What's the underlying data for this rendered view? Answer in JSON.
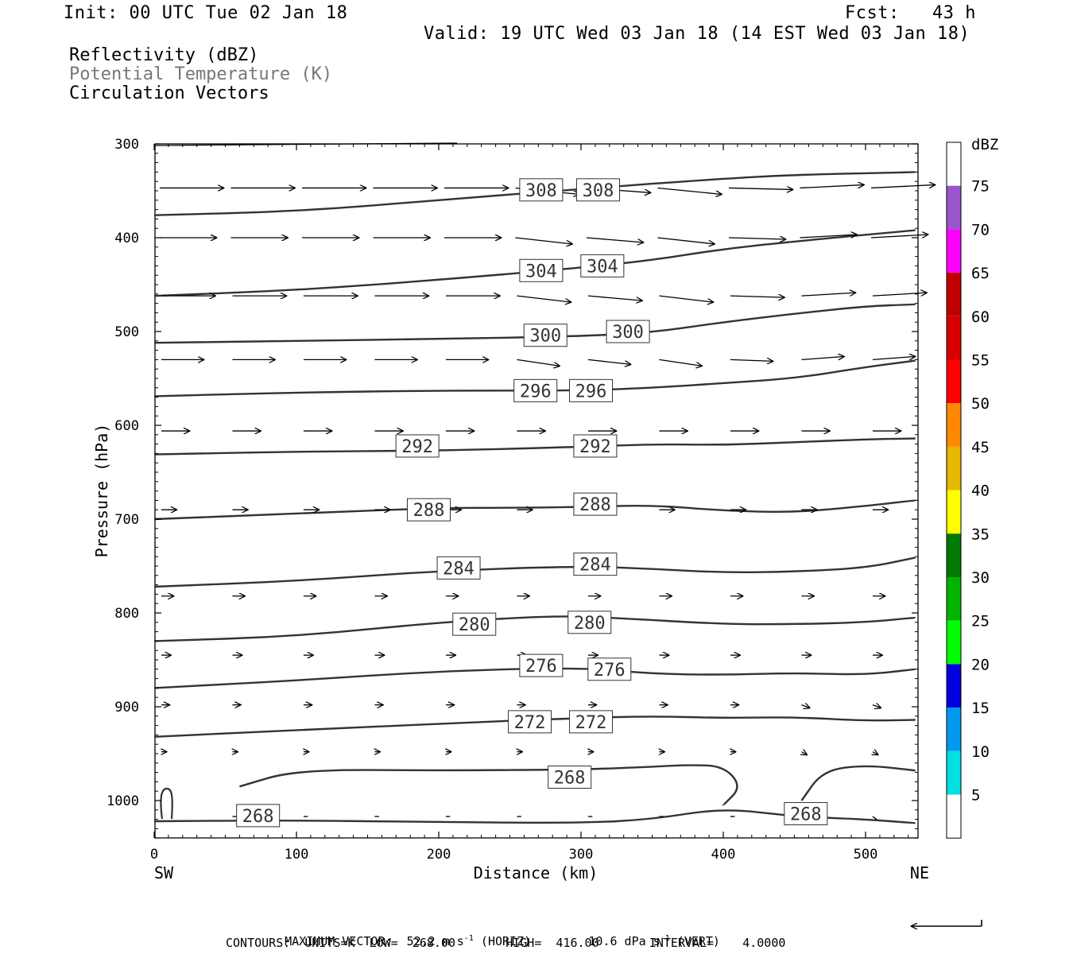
{
  "header": {
    "init": "Init: 00 UTC Tue 02 Jan 18",
    "fcst": "Fcst:   43 h",
    "valid": "Valid: 19 UTC Wed 03 Jan 18 (14 EST Wed 03 Jan 18)"
  },
  "fields": {
    "reflectivity": "Reflectivity (dBZ)",
    "theta": "Potential Temperature (K)",
    "vectors": "Circulation Vectors"
  },
  "footer": {
    "max_vector": "MAXIMUM VECTOR:  52.2 m s",
    "exp1": "-1",
    "horiz": " (HORIZ)",
    "vert_val": "10.6 dPa s",
    "exp2": "-1",
    "vert": " (VERT)",
    "contours": "CONTOURS:  UNITS=K  LOW=  268.00       HIGH=  416.00       INTERVAL=    4.0000"
  },
  "colors": {
    "contour": "#333333",
    "arrow": "#000000"
  },
  "chart_data": {
    "type": "line",
    "description_type": "cross-section",
    "xlabel": "Distance (km)",
    "ylabel": "Pressure (hPa)",
    "xlim": [
      0,
      535
    ],
    "ylim": [
      1040,
      300
    ],
    "x_ticks": [
      0,
      100,
      200,
      300,
      400,
      500
    ],
    "y_ticks": [
      300,
      400,
      500,
      600,
      700,
      800,
      900,
      1000
    ],
    "x_end_labels": {
      "left": "SW",
      "right": "NE"
    },
    "contours": [
      {
        "value": 308,
        "x": [
          0,
          100,
          200,
          300,
          400,
          450,
          535
        ],
        "y": [
          376,
          372,
          360,
          348,
          337,
          333,
          330
        ],
        "labels": [
          {
            "text": "308",
            "x": 272,
            "y": 349
          },
          {
            "text": "308",
            "x": 312,
            "y": 349
          }
        ]
      },
      {
        "value": 304,
        "x": [
          0,
          100,
          200,
          300,
          350,
          400,
          450,
          535
        ],
        "y": [
          462,
          456,
          445,
          432,
          424,
          412,
          404,
          392
        ],
        "labels": [
          {
            "text": "304",
            "x": 272,
            "y": 435
          },
          {
            "text": "304",
            "x": 315,
            "y": 430
          }
        ]
      },
      {
        "value": 300,
        "x": [
          0,
          100,
          200,
          300,
          350,
          400,
          450,
          500,
          535
        ],
        "y": [
          512,
          510,
          508,
          505,
          501,
          490,
          481,
          473,
          471
        ],
        "labels": [
          {
            "text": "300",
            "x": 275,
            "y": 504
          },
          {
            "text": "300",
            "x": 333,
            "y": 500
          }
        ]
      },
      {
        "value": 296,
        "x": [
          0,
          100,
          200,
          300,
          350,
          400,
          450,
          500,
          535
        ],
        "y": [
          569,
          565,
          563,
          563,
          560,
          555,
          550,
          538,
          531
        ],
        "labels": [
          {
            "text": "296",
            "x": 268,
            "y": 563
          },
          {
            "text": "296",
            "x": 307,
            "y": 563
          }
        ]
      },
      {
        "value": 292,
        "x": [
          0,
          100,
          200,
          300,
          350,
          400,
          450,
          500,
          535
        ],
        "y": [
          631,
          628,
          627,
          623,
          620,
          621,
          618,
          615,
          614
        ],
        "labels": [
          {
            "text": "292",
            "x": 185,
            "y": 622
          },
          {
            "text": "292",
            "x": 310,
            "y": 622
          }
        ]
      },
      {
        "value": 288,
        "x": [
          0,
          100,
          200,
          250,
          300,
          350,
          400,
          450,
          500,
          535
        ],
        "y": [
          700,
          694,
          688,
          688,
          687,
          685,
          691,
          693,
          686,
          680
        ],
        "labels": [
          {
            "text": "288",
            "x": 193,
            "y": 690
          },
          {
            "text": "288",
            "x": 310,
            "y": 684
          }
        ]
      },
      {
        "value": 284,
        "x": [
          0,
          100,
          200,
          300,
          350,
          400,
          450,
          500,
          535
        ],
        "y": [
          772,
          766,
          755,
          750,
          753,
          757,
          756,
          752,
          741
        ],
        "labels": [
          {
            "text": "284",
            "x": 214,
            "y": 752
          },
          {
            "text": "284",
            "x": 310,
            "y": 748
          }
        ]
      },
      {
        "value": 280,
        "x": [
          0,
          100,
          200,
          280,
          320,
          400,
          450,
          500,
          535
        ],
        "y": [
          830,
          825,
          810,
          803,
          805,
          812,
          812,
          810,
          805
        ],
        "labels": [
          {
            "text": "280",
            "x": 225,
            "y": 812
          },
          {
            "text": "280",
            "x": 306,
            "y": 810
          }
        ]
      },
      {
        "value": 276,
        "x": [
          0,
          100,
          200,
          300,
          350,
          400,
          450,
          500,
          535
        ],
        "y": [
          880,
          872,
          862,
          858,
          865,
          866,
          864,
          866,
          860
        ],
        "labels": [
          {
            "text": "276",
            "x": 272,
            "y": 856
          },
          {
            "text": "276",
            "x": 320,
            "y": 860
          }
        ]
      },
      {
        "value": 272,
        "x": [
          0,
          100,
          200,
          300,
          350,
          400,
          450,
          500,
          535
        ],
        "y": [
          932,
          925,
          918,
          912,
          910,
          912,
          911,
          915,
          914
        ],
        "labels": [
          {
            "text": "272",
            "x": 264,
            "y": 916
          },
          {
            "text": "272",
            "x": 307,
            "y": 916
          }
        ]
      },
      {
        "value": 268,
        "x": [
          0,
          100,
          200,
          300,
          350,
          400,
          450,
          500,
          535
        ],
        "y": [
          1022,
          1021,
          1023,
          1024,
          1020,
          1008,
          1017,
          1020,
          1024
        ],
        "labels": [
          {
            "text": "268",
            "x": 73,
            "y": 1016
          },
          {
            "text": "268",
            "x": 458,
            "y": 1014
          }
        ]
      },
      {
        "value": 268,
        "x": [
          60,
          100,
          200,
          300,
          350,
          375,
          400,
          413,
          400
        ],
        "y": [
          985,
          967,
          968,
          967,
          964,
          962,
          963,
          985,
          1005
        ],
        "labels": [
          {
            "text": "268",
            "x": 292,
            "y": 975
          }
        ]
      },
      {
        "value": 268,
        "x": [
          455,
          470,
          500,
          535
        ],
        "y": [
          1000,
          968,
          962,
          968
        ],
        "labels": []
      }
    ],
    "vector_rows_hPa": [
      347,
      400,
      462,
      530,
      606,
      690,
      782,
      845,
      898,
      948,
      1017
    ],
    "vector_cols_km": [
      5,
      55,
      105,
      155,
      205,
      255,
      305,
      355,
      405,
      455,
      505
    ],
    "vector_speed_by_row": [
      45,
      40,
      38,
      30,
      20,
      11,
      9,
      7,
      6,
      4,
      3
    ]
  },
  "colorbar": {
    "title": "dBZ",
    "labels": [
      "75",
      "70",
      "65",
      "60",
      "55",
      "50",
      "45",
      "40",
      "35",
      "30",
      "25",
      "20",
      "15",
      "10",
      "5"
    ],
    "colors": [
      "#ffffff",
      "#9955cc",
      "#ff00ff",
      "#c00000",
      "#d60000",
      "#ff0000",
      "#ff8800",
      "#e6b800",
      "#ffff00",
      "#007a00",
      "#00b400",
      "#00ff00",
      "#0000dd",
      "#0099ee",
      "#00e0e0",
      "#ffffff"
    ]
  }
}
